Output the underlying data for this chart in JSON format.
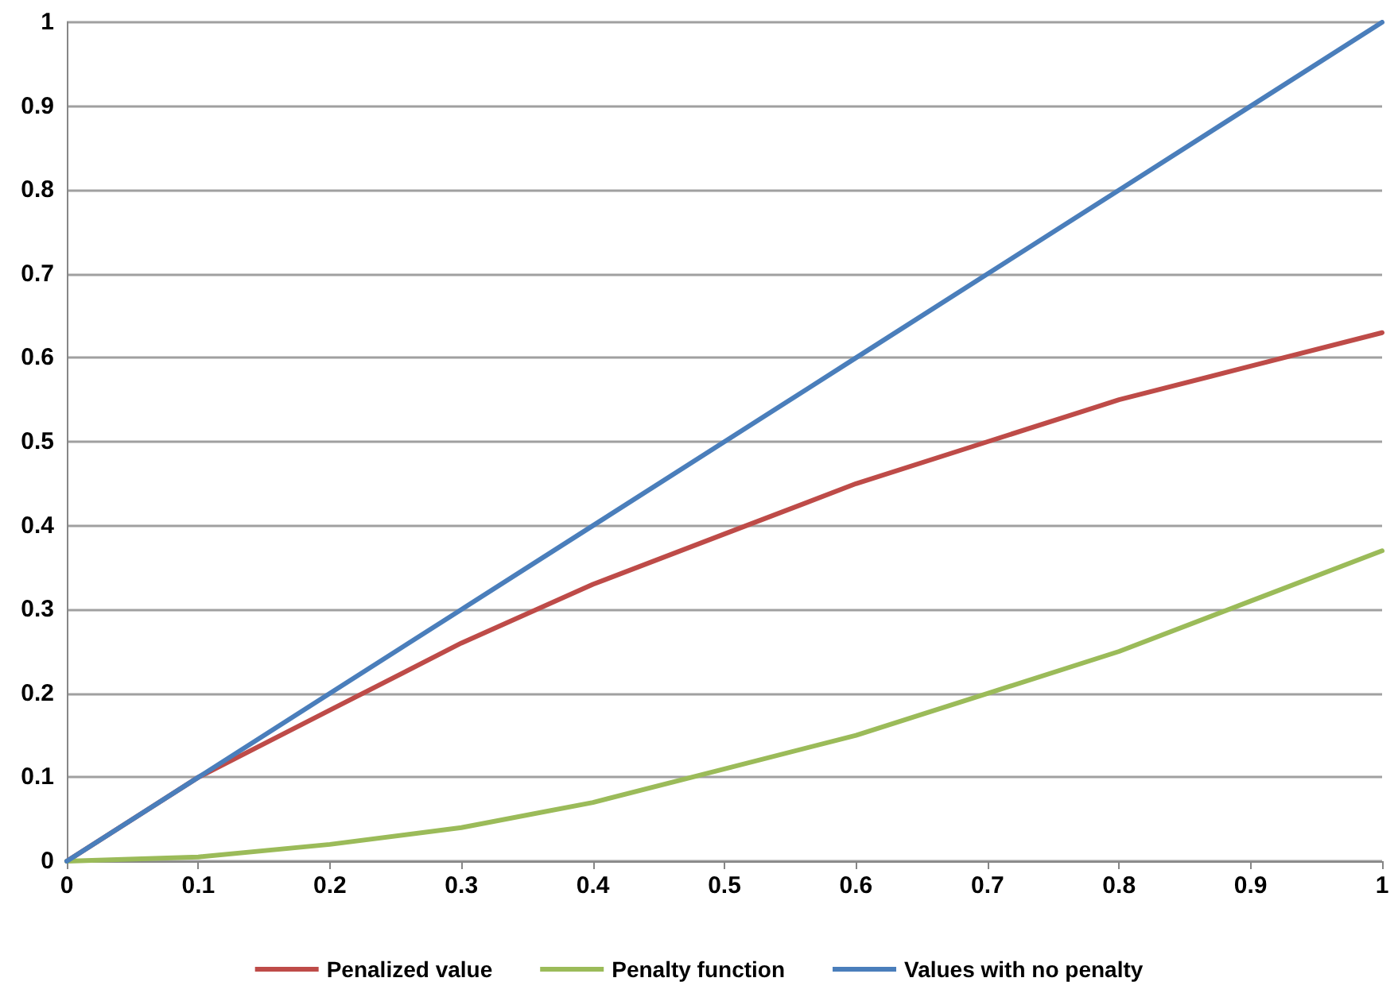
{
  "chart_data": {
    "type": "line",
    "x": [
      0,
      0.1,
      0.2,
      0.3,
      0.4,
      0.5,
      0.6,
      0.7,
      0.8,
      0.9,
      1
    ],
    "series": [
      {
        "name": "Penalized value",
        "color": "#be4b48",
        "values": [
          0,
          0.1,
          0.18,
          0.26,
          0.33,
          0.39,
          0.45,
          0.5,
          0.55,
          0.59,
          0.63
        ]
      },
      {
        "name": "Penalty function",
        "color": "#9bbb59",
        "values": [
          0,
          0.005,
          0.02,
          0.04,
          0.07,
          0.11,
          0.15,
          0.2,
          0.25,
          0.31,
          0.37
        ]
      },
      {
        "name": "Values with no penalty",
        "color": "#4a7ebb",
        "values": [
          0,
          0.1,
          0.2,
          0.3,
          0.4,
          0.5,
          0.6,
          0.7,
          0.8,
          0.9,
          1
        ]
      }
    ],
    "xlim": [
      0,
      1
    ],
    "xticks": [
      0,
      0.1,
      0.2,
      0.3,
      0.4,
      0.5,
      0.6,
      0.7,
      0.8,
      0.9,
      1
    ],
    "ylim": [
      0,
      1
    ],
    "yticks": [
      0,
      0.1,
      0.2,
      0.3,
      0.4,
      0.5,
      0.6,
      0.7,
      0.8,
      0.9,
      1
    ],
    "grid": "y",
    "legend": "bottom",
    "marker": "none",
    "line_style": "solid"
  }
}
